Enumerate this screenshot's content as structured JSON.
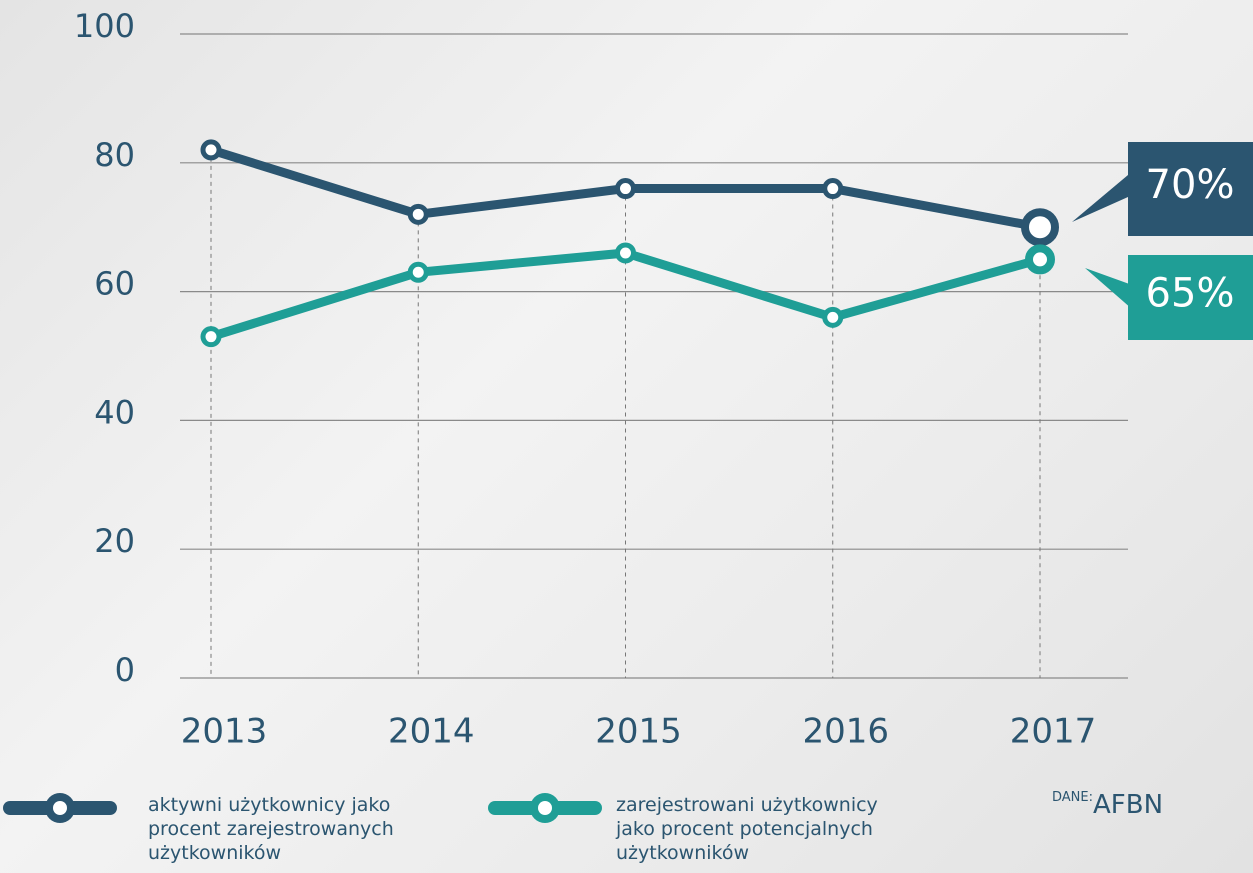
{
  "chart_data": {
    "type": "line",
    "categories": [
      "2013",
      "2014",
      "2015",
      "2016",
      "2017"
    ],
    "series": [
      {
        "name": "aktywni użytkownicy jako procent zarejestrowanych użytkowników",
        "color": "#2b5570",
        "values": [
          82,
          72,
          76,
          76,
          70
        ],
        "value_labels": [
          null,
          null,
          null,
          null,
          "70%"
        ]
      },
      {
        "name": "zarejestrowani użytkownicy jako procent potencjalnych użytkowników",
        "color": "#1f9e96",
        "values": [
          53,
          63,
          66,
          56,
          65
        ],
        "value_labels": [
          null,
          null,
          null,
          null,
          "65%"
        ]
      }
    ],
    "ylim": [
      0,
      100
    ],
    "yticks": [
      0,
      20,
      40,
      60,
      80,
      100
    ],
    "grid": true,
    "source_label": "DANE:",
    "source": "AFBN"
  }
}
